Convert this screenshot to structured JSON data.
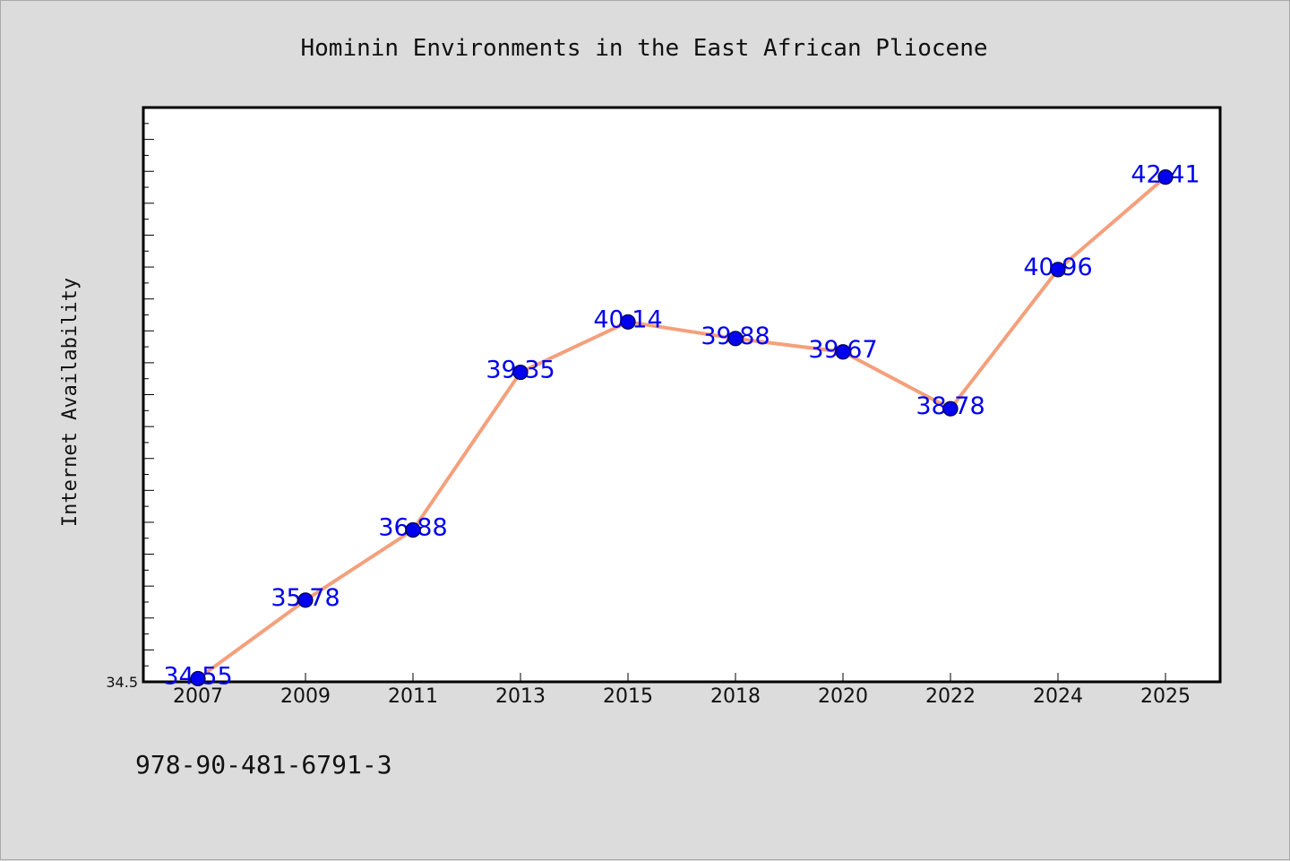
{
  "chart_data": {
    "type": "line",
    "title": "Hominin Environments in the East African Pliocene",
    "xlabel": "",
    "ylabel": "Internet Availability",
    "categories": [
      "2007",
      "2009",
      "2011",
      "2013",
      "2015",
      "2018",
      "2020",
      "2022",
      "2024",
      "2025"
    ],
    "series": [
      {
        "values": [
          34.55,
          35.78,
          36.88,
          39.35,
          40.14,
          39.88,
          39.67,
          38.78,
          40.96,
          42.41
        ]
      }
    ],
    "data_labels": [
      "34.55",
      "35.78",
      "36.88",
      "39.35",
      "40.14",
      "39.88",
      "39.67",
      "38.78",
      "40.96",
      "42.41"
    ],
    "yticks": [
      "34.5"
    ],
    "ylim": [
      34.5,
      43.5
    ],
    "grid": false,
    "legend": "none",
    "colors": {
      "line": "#f4a07c",
      "marker": "#0000ee",
      "label": "#0000ee",
      "background": "#dcdcdc",
      "plot_background": "#ffffff"
    }
  },
  "footer": {
    "isbn": "978-90-481-6791-3"
  }
}
